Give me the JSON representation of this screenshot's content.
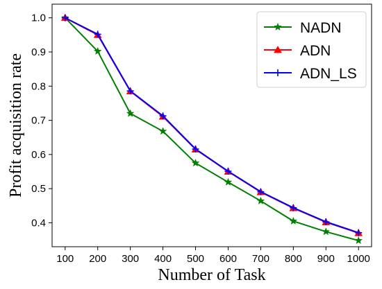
{
  "chart_data": {
    "type": "line",
    "title": "",
    "xlabel": "Number of Task",
    "ylabel": "Profit acquisition rate",
    "x": [
      100,
      200,
      300,
      400,
      500,
      600,
      700,
      800,
      900,
      1000
    ],
    "xticks": [
      "100",
      "200",
      "300",
      "400",
      "500",
      "600",
      "700",
      "800",
      "900",
      "1000"
    ],
    "yticks": [
      "0.4",
      "0.5",
      "0.6",
      "0.7",
      "0.8",
      "0.9",
      "1.0"
    ],
    "ylim": [
      0.33,
      1.04
    ],
    "grid": false,
    "legend_position": "top-right",
    "series": [
      {
        "name": "NADN",
        "color": "#008000",
        "marker": "star",
        "values": [
          1.0,
          0.902,
          0.72,
          0.668,
          0.575,
          0.519,
          0.464,
          0.405,
          0.374,
          0.348
        ]
      },
      {
        "name": "ADN",
        "color": "#ff0000",
        "marker": "triangle",
        "values": [
          1.0,
          0.95,
          0.785,
          0.711,
          0.615,
          0.55,
          0.49,
          0.443,
          0.402,
          0.37
        ]
      },
      {
        "name": "ADN_LS",
        "color": "#0000ff",
        "marker": "plus",
        "values": [
          1.0,
          0.952,
          0.786,
          0.713,
          0.616,
          0.551,
          0.491,
          0.444,
          0.403,
          0.371
        ]
      }
    ]
  }
}
